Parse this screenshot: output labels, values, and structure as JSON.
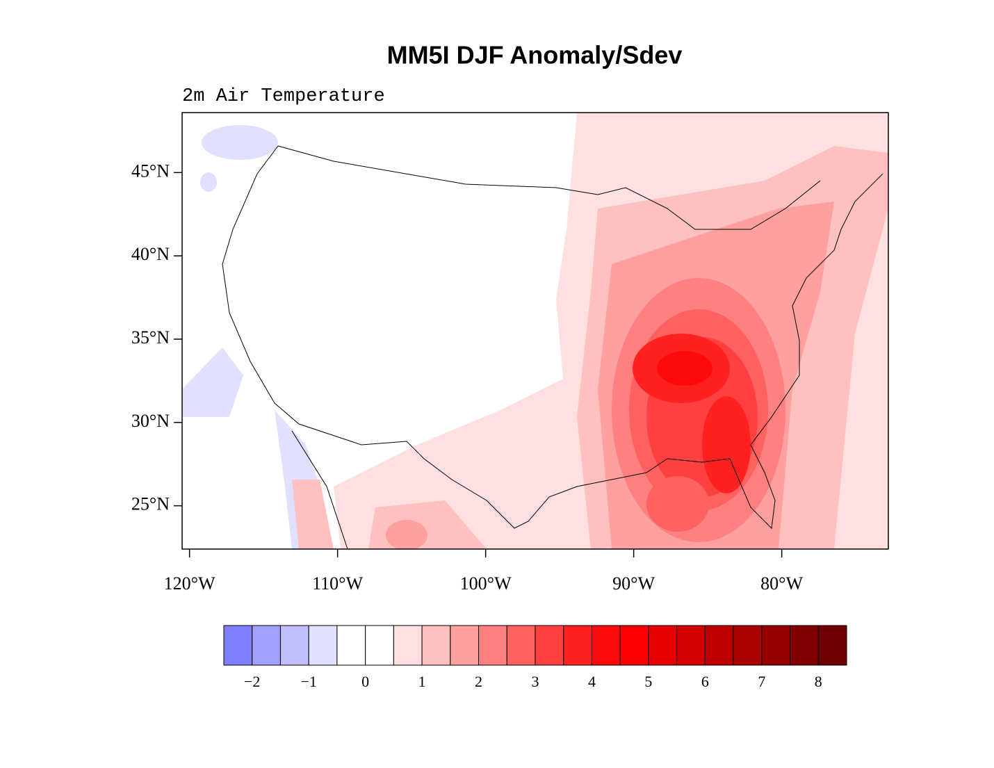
{
  "map": {
    "title": "MM5I DJF Anomaly/Sdev",
    "subtitle": "2m Air Temperature",
    "xlim": [
      -120.5,
      -72.8
    ],
    "ylim": [
      22.4,
      48.6
    ],
    "xticks": [
      {
        "value": -120,
        "label": "120°W"
      },
      {
        "value": -110,
        "label": "110°W"
      },
      {
        "value": -100,
        "label": "100°W"
      },
      {
        "value": -90,
        "label": "90°W"
      },
      {
        "value": -80,
        "label": "80°W"
      }
    ],
    "yticks": [
      {
        "value": 25,
        "label": "25°N"
      },
      {
        "value": 30,
        "label": "30°N"
      },
      {
        "value": 35,
        "label": "35°N"
      },
      {
        "value": 40,
        "label": "40°N"
      },
      {
        "value": 45,
        "label": "45°N"
      }
    ]
  },
  "colorbar": {
    "lim": [
      -2.5,
      8.5
    ],
    "colors": [
      "#8080ff",
      "#a0a0ff",
      "#c0c0ff",
      "#e0e0ff",
      "#ffffff",
      "#ffffff",
      "#ffe0e0",
      "#ffc0c0",
      "#ffa0a0",
      "#ff8080",
      "#ff6060",
      "#ff4040",
      "#ff2020",
      "#ff0a0a",
      "#ff0000",
      "#e80000",
      "#d40000",
      "#bf0000",
      "#aa0000",
      "#960000",
      "#800000",
      "#700000"
    ],
    "ticks": [
      {
        "value": -2,
        "label": "−2"
      },
      {
        "value": -1,
        "label": "−1"
      },
      0,
      1,
      2,
      3,
      4,
      5,
      6,
      7,
      8
    ]
  }
}
